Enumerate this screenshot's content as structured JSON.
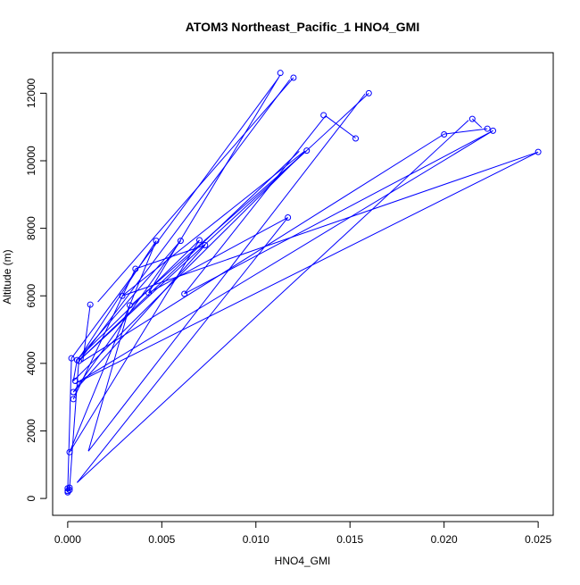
{
  "chart_data": {
    "type": "line",
    "title": "ATOM3 Northeast_Pacific_1 HNO4_GMI",
    "xlabel": "HNO4_GMI",
    "ylabel": "Altitude (m)",
    "xlim": [
      -0.0008,
      0.0258
    ],
    "ylim": [
      -500,
      13200
    ],
    "x_ticks": [
      0.0,
      0.005,
      0.01,
      0.015,
      0.02,
      0.025
    ],
    "x_tick_labels": [
      "0.000",
      "0.005",
      "0.010",
      "0.015",
      "0.020",
      "0.025"
    ],
    "y_ticks": [
      0,
      2000,
      4000,
      6000,
      8000,
      10000,
      12000
    ],
    "y_tick_labels": [
      "0",
      "2000",
      "4000",
      "6000",
      "8000",
      "10000",
      "12000"
    ],
    "grid": false,
    "series": [
      {
        "color": "#0000ff",
        "marker": "open-circle",
        "points": [
          {
            "x": 0.0,
            "y": 220
          },
          {
            "x": 0.0001,
            "y": 320
          },
          {
            "x": 0.0001,
            "y": 1370
          },
          {
            "x": 0.0003,
            "y": 2940
          },
          {
            "x": 0.0003,
            "y": 3150
          },
          {
            "x": 0.0004,
            "y": 3480
          },
          {
            "x": 0.0006,
            "y": 4070
          },
          {
            "x": 0.0005,
            "y": 4100
          },
          {
            "x": 0.0002,
            "y": 4150
          },
          {
            "x": 0.0012,
            "y": 5740
          },
          {
            "x": 0.0033,
            "y": 5720
          },
          {
            "x": 0.0029,
            "y": 6000
          },
          {
            "x": 0.0043,
            "y": 6090
          },
          {
            "x": 0.0062,
            "y": 6060
          },
          {
            "x": 0.0036,
            "y": 6800
          },
          {
            "x": 0.0073,
            "y": 7500
          },
          {
            "x": 0.0047,
            "y": 7630
          },
          {
            "x": 0.006,
            "y": 7630
          },
          {
            "x": 0.007,
            "y": 7650
          },
          {
            "x": 0.0117,
            "y": 8320
          },
          {
            "x": 0.0127,
            "y": 10300
          },
          {
            "x": 0.0153,
            "y": 10660
          },
          {
            "x": 0.0136,
            "y": 11350
          },
          {
            "x": 0.016,
            "y": 12000
          },
          {
            "x": 0.0113,
            "y": 12600
          },
          {
            "x": 0.012,
            "y": 12460
          },
          {
            "x": 0.02,
            "y": 10780
          },
          {
            "x": 0.0215,
            "y": 11240
          },
          {
            "x": 0.0223,
            "y": 10950
          },
          {
            "x": 0.0226,
            "y": 10890
          },
          {
            "x": 0.025,
            "y": 10260
          },
          {
            "x": 0.0,
            "y": 180
          },
          {
            "x": 0.0001,
            "y": 250
          },
          {
            "x": 0.0,
            "y": 300
          }
        ],
        "segments": [
          [
            0.0,
            220,
            0.0002,
            4150
          ],
          [
            0.0002,
            4150,
            0.0112,
            12450
          ],
          [
            0.0113,
            12550,
            0.0043,
            6090
          ],
          [
            0.0043,
            6090,
            0.0117,
            8320
          ],
          [
            0.0117,
            8320,
            0.0005,
            470
          ],
          [
            0.0005,
            470,
            0.0213,
            11200
          ],
          [
            0.0215,
            11240,
            0.022,
            10980
          ],
          [
            0.0223,
            10950,
            0.02,
            10790
          ],
          [
            0.02,
            10790,
            0.0007,
            4030
          ],
          [
            0.0006,
            4070,
            0.0118,
            12400
          ],
          [
            0.012,
            12460,
            0.0016,
            5820
          ],
          [
            0.0012,
            5740,
            0.0008,
            4050
          ],
          [
            0.0008,
            4050,
            0.0007,
            4050
          ],
          [
            0.0005,
            4100,
            0.0003,
            3480
          ],
          [
            0.0003,
            3480,
            0.0126,
            10280
          ],
          [
            0.0127,
            10300,
            0.0034,
            5740
          ],
          [
            0.0033,
            5720,
            0.0011,
            1400
          ],
          [
            0.0011,
            1400,
            0.0158,
            11980
          ],
          [
            0.016,
            12000,
            0.0006,
            4080
          ],
          [
            0.0006,
            4080,
            0.0123,
            10280
          ],
          [
            0.0126,
            10290,
            0.0029,
            6000
          ],
          [
            0.0029,
            6000,
            0.025,
            10260
          ],
          [
            0.025,
            10260,
            0.0004,
            3400
          ],
          [
            0.0004,
            3400,
            0.0226,
            10890
          ],
          [
            0.0226,
            10890,
            0.0062,
            6060
          ],
          [
            0.0062,
            6060,
            0.0137,
            11330
          ],
          [
            0.0137,
            11330,
            0.0153,
            10670
          ],
          [
            0.0003,
            2940,
            0.0036,
            6800
          ],
          [
            0.0036,
            6800,
            0.0073,
            7500
          ],
          [
            0.0073,
            7500,
            0.0003,
            3150
          ],
          [
            0.0003,
            3150,
            0.006,
            7630
          ],
          [
            0.006,
            7630,
            0.0005,
            4110
          ],
          [
            0.0005,
            4110,
            0.007,
            7650
          ],
          [
            0.007,
            7650,
            0.0001,
            1370
          ],
          [
            0.0001,
            1370,
            0.0047,
            7630
          ],
          [
            0.0047,
            7630,
            0.0006,
            4150
          ],
          [
            0.0006,
            4150,
            0.0001,
            320
          ],
          [
            0.0001,
            320,
            0.0,
            180
          ]
        ]
      }
    ]
  }
}
